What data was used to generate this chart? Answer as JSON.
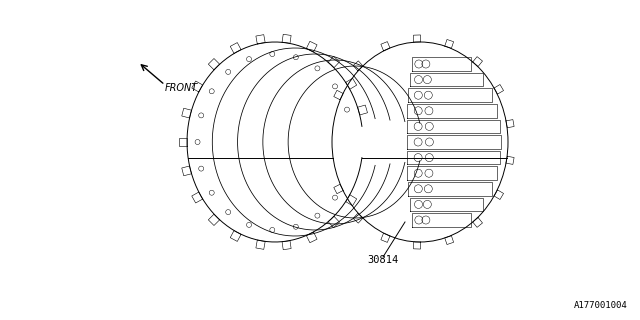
{
  "background_color": "#ffffff",
  "line_color": "#000000",
  "line_width": 0.7,
  "fig_width": 6.4,
  "fig_height": 3.2,
  "dpi": 100,
  "part_number": "30814",
  "diagram_ref": "A177001004",
  "front_label": "FRONT",
  "part_label_fontsize": 7.5,
  "ref_label_fontsize": 6.5,
  "front_label_fontsize": 7.0
}
